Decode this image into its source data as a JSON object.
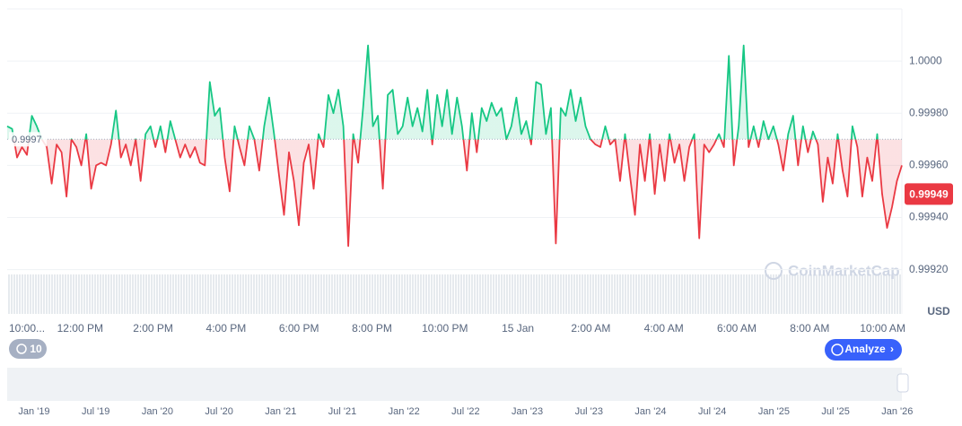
{
  "chart_data": {
    "type": "line",
    "values": [
      0.99975,
      0.99974,
      0.99963,
      0.99967,
      0.99964,
      0.99979,
      0.99975,
      0.9997,
      0.99967,
      0.99953,
      0.99968,
      0.99965,
      0.99948,
      0.9997,
      0.99967,
      0.9996,
      0.99972,
      0.99951,
      0.9996,
      0.99961,
      0.9996,
      0.99968,
      0.99981,
      0.99963,
      0.99968,
      0.9996,
      0.9997,
      0.99954,
      0.99972,
      0.99975,
      0.99967,
      0.99975,
      0.99965,
      0.99977,
      0.9997,
      0.99963,
      0.99968,
      0.99963,
      0.99967,
      0.99961,
      0.9996,
      0.99992,
      0.99979,
      0.99982,
      0.99963,
      0.9995,
      0.99975,
      0.99967,
      0.9996,
      0.99975,
      0.9997,
      0.99958,
      0.99975,
      0.99986,
      0.99972,
      0.99956,
      0.99941,
      0.99965,
      0.99954,
      0.99937,
      0.99961,
      0.99968,
      0.99951,
      0.99972,
      0.99967,
      0.99987,
      0.9998,
      0.99989,
      0.99975,
      0.99929,
      0.99972,
      0.99961,
      0.99982,
      1.00006,
      0.99975,
      0.99979,
      0.99951,
      0.99987,
      0.99989,
      0.99972,
      0.99975,
      0.99986,
      0.99975,
      0.99982,
      0.99973,
      0.99989,
      0.99968,
      0.99987,
      0.99975,
      0.99989,
      0.99972,
      0.99986,
      0.99975,
      0.99958,
      0.9998,
      0.99965,
      0.99982,
      0.99977,
      0.99984,
      0.99979,
      0.99982,
      0.9997,
      0.99975,
      0.99986,
      0.99972,
      0.99977,
      0.99968,
      0.99992,
      0.99991,
      0.99972,
      0.99982,
      0.9993,
      0.99982,
      0.99979,
      0.99989,
      0.99977,
      0.99986,
      0.99975,
      0.9997,
      0.99968,
      0.99967,
      0.99975,
      0.99968,
      0.9997,
      0.99954,
      0.99972,
      0.99956,
      0.99941,
      0.99968,
      0.99954,
      0.99972,
      0.99949,
      0.99968,
      0.99954,
      0.99972,
      0.99961,
      0.99968,
      0.99954,
      0.99967,
      0.99972,
      0.99932,
      0.99968,
      0.99965,
      0.99968,
      0.99972,
      0.99967,
      1.00002,
      0.9996,
      0.99975,
      1.00006,
      0.99967,
      0.99975,
      0.99967,
      0.99977,
      0.9997,
      0.99975,
      0.99968,
      0.99958,
      0.99972,
      0.99979,
      0.9996,
      0.99975,
      0.99965,
      0.99973,
      0.99968,
      0.99946,
      0.99963,
      0.99953,
      0.99972,
      0.99958,
      0.99948,
      0.99975,
      0.99967,
      0.99948,
      0.99963,
      0.99954,
      0.99972,
      0.99949,
      0.99936,
      0.99944,
      0.99954,
      0.9996
    ],
    "up_color": "#16c784",
    "down_color": "#ea3943",
    "baseline": 0.9997,
    "current_price": 0.99949,
    "ylim": [
      0.99903,
      1.0002
    ],
    "yticks": [
      {
        "value": 0.9992,
        "label": "0.99920"
      },
      {
        "value": 0.9994,
        "label": "0.99940"
      },
      {
        "value": 0.9996,
        "label": "0.99960"
      },
      {
        "value": 0.9998,
        "label": "0.99980"
      },
      {
        "value": 1,
        "label": "1.0000"
      }
    ],
    "x_tick_labels": [
      "10:00...",
      "12:00 PM",
      "2:00 PM",
      "4:00 PM",
      "6:00 PM",
      "8:00 PM",
      "10:00 PM",
      "15 Jan",
      "2:00 AM",
      "4:00 AM",
      "6:00 AM",
      "8:00 AM",
      "10:00 AM"
    ],
    "currency": "USD",
    "watermark": "CoinMarketCap"
  },
  "controls": {
    "history_button": "10",
    "analyze_button": "Analyze"
  },
  "navigator": {
    "labels": [
      "Jan '19",
      "Jul '19",
      "Jan '20",
      "Jul '20",
      "Jan '21",
      "Jul '21",
      "Jan '22",
      "Jul '22",
      "Jan '23",
      "Jul '23",
      "Jan '24",
      "Jul '24",
      "Jan '25",
      "Jul '25",
      "Jan '26"
    ]
  }
}
